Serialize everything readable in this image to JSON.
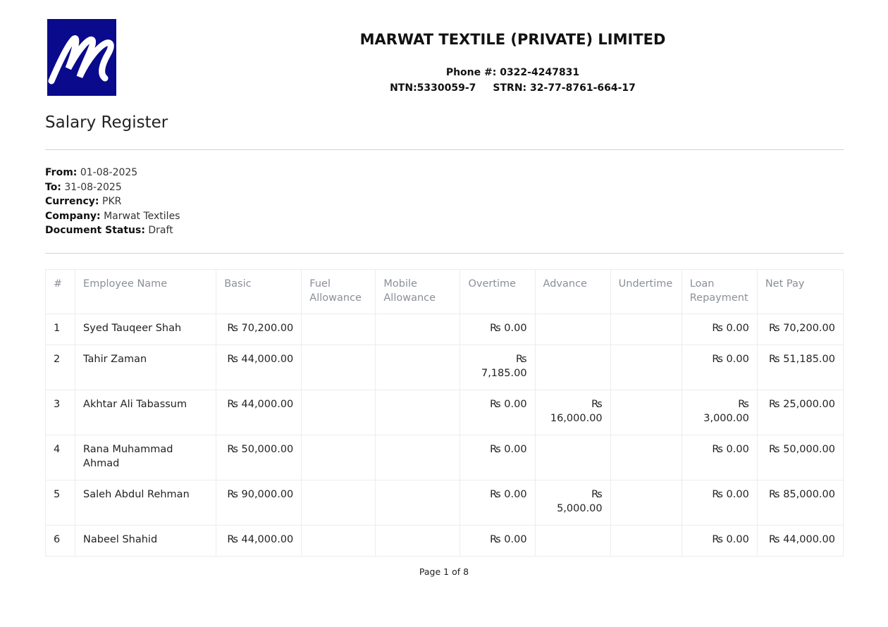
{
  "header": {
    "company": "MARWAT TEXTILE (PRIVATE) LIMITED",
    "phone": "Phone #: 0322-4247831",
    "ntn": "NTN:5330059-7",
    "strn": "STRN: 32-77-8761-664-17",
    "logo_text": "M",
    "logo_color": "#0a0a8c"
  },
  "title": "Salary Register",
  "meta": [
    {
      "label": "From:",
      "value": "01-08-2025"
    },
    {
      "label": "To:",
      "value": "31-08-2025"
    },
    {
      "label": "Currency:",
      "value": "PKR"
    },
    {
      "label": "Company:",
      "value": "Marwat Textiles"
    },
    {
      "label": "Document Status:",
      "value": "Draft"
    }
  ],
  "table": {
    "columns": [
      "#",
      "Employee Name",
      "Basic",
      "Fuel Allowance",
      "Mobile Allowance",
      "Overtime",
      "Advance",
      "Undertime",
      "Loan Repayment",
      "Net Pay"
    ],
    "rows": [
      [
        "1",
        "Syed Tauqeer Shah",
        "₨ 70,200.00",
        "",
        "",
        "₨ 0.00",
        "",
        "",
        "₨ 0.00",
        "₨ 70,200.00"
      ],
      [
        "2",
        "Tahir Zaman",
        "₨ 44,000.00",
        "",
        "",
        "₨ 7,185.00",
        "",
        "",
        "₨ 0.00",
        "₨ 51,185.00"
      ],
      [
        "3",
        "Akhtar Ali Tabassum",
        "₨ 44,000.00",
        "",
        "",
        "₨ 0.00",
        "₨ 16,000.00",
        "",
        "₨ 3,000.00",
        "₨ 25,000.00"
      ],
      [
        "4",
        "Rana Muhammad Ahmad",
        "₨ 50,000.00",
        "",
        "",
        "₨ 0.00",
        "",
        "",
        "₨ 0.00",
        "₨ 50,000.00"
      ],
      [
        "5",
        "Saleh Abdul Rehman",
        "₨ 90,000.00",
        "",
        "",
        "₨ 0.00",
        "₨ 5,000.00",
        "",
        "₨ 0.00",
        "₨ 85,000.00"
      ],
      [
        "6",
        "Nabeel Shahid",
        "₨ 44,000.00",
        "",
        "",
        "₨ 0.00",
        "",
        "",
        "₨ 0.00",
        "₨ 44,000.00"
      ]
    ]
  },
  "footer": "Page 1 of 8"
}
